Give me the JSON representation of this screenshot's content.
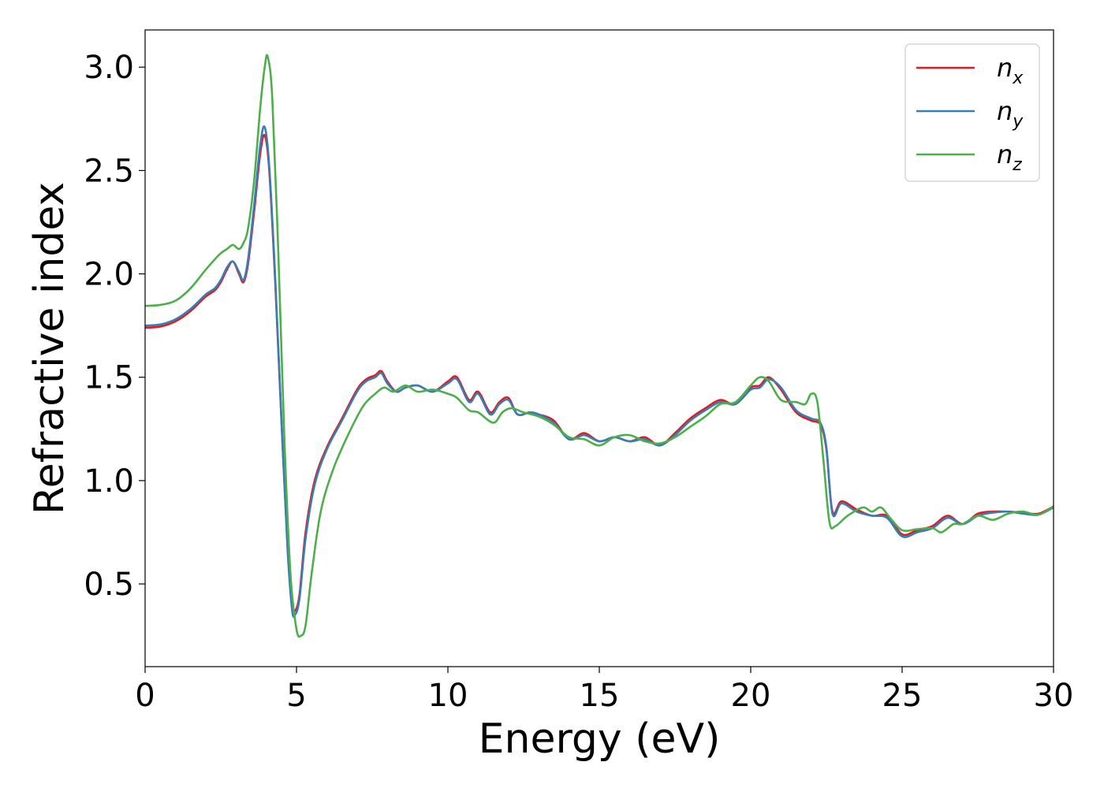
{
  "chart_data": {
    "type": "line",
    "title": "",
    "xlabel": "Energy (eV)",
    "ylabel": "Refractive index",
    "xlim": [
      0,
      30
    ],
    "ylim": [
      0.1,
      3.18
    ],
    "xticks": [
      0,
      5,
      10,
      15,
      20,
      25,
      30
    ],
    "yticks": [
      0.5,
      1.0,
      1.5,
      2.0,
      2.5,
      3.0
    ],
    "xtick_labels": [
      "0",
      "5",
      "10",
      "15",
      "20",
      "25",
      "30"
    ],
    "ytick_labels": [
      "0.5",
      "1.0",
      "1.5",
      "2.0",
      "2.5",
      "3.0"
    ],
    "grid": false,
    "legend_position": "top-right",
    "series": [
      {
        "name": "n_x",
        "legend_main": "n",
        "legend_sub": "x",
        "color": "#e41a1c",
        "x": [
          0,
          0.5,
          1.0,
          1.5,
          2.0,
          2.3,
          2.5,
          2.7,
          2.9,
          3.1,
          3.25,
          3.4,
          3.6,
          3.8,
          3.95,
          4.1,
          4.3,
          4.5,
          4.7,
          4.85,
          4.95,
          5.1,
          5.3,
          5.6,
          6.0,
          6.5,
          7.0,
          7.3,
          7.6,
          7.8,
          8.0,
          8.3,
          8.6,
          9.0,
          9.5,
          10.0,
          10.3,
          10.7,
          11.0,
          11.4,
          11.7,
          12.0,
          12.3,
          12.7,
          13.0,
          13.5,
          14.0,
          14.5,
          15.0,
          15.5,
          16.0,
          16.5,
          17.0,
          17.5,
          18.0,
          18.5,
          19.0,
          19.5,
          20.0,
          20.3,
          20.6,
          21.0,
          21.5,
          22.0,
          22.3,
          22.5,
          22.7,
          23.0,
          23.5,
          24.0,
          24.5,
          25.0,
          25.5,
          26.0,
          26.5,
          27.0,
          27.5,
          28.0,
          28.5,
          29.0,
          29.5,
          30.0
        ],
        "values": [
          1.74,
          1.745,
          1.77,
          1.82,
          1.89,
          1.92,
          1.96,
          2.02,
          2.06,
          2.0,
          1.96,
          2.05,
          2.3,
          2.58,
          2.67,
          2.5,
          1.95,
          1.3,
          0.7,
          0.42,
          0.37,
          0.45,
          0.75,
          1.0,
          1.16,
          1.3,
          1.44,
          1.49,
          1.51,
          1.53,
          1.48,
          1.43,
          1.45,
          1.46,
          1.43,
          1.48,
          1.5,
          1.39,
          1.43,
          1.33,
          1.38,
          1.4,
          1.32,
          1.33,
          1.32,
          1.29,
          1.2,
          1.23,
          1.19,
          1.21,
          1.19,
          1.21,
          1.17,
          1.23,
          1.3,
          1.35,
          1.39,
          1.37,
          1.45,
          1.46,
          1.5,
          1.44,
          1.33,
          1.29,
          1.27,
          1.15,
          0.85,
          0.9,
          0.86,
          0.83,
          0.83,
          0.74,
          0.76,
          0.78,
          0.83,
          0.79,
          0.84,
          0.85,
          0.85,
          0.845,
          0.84,
          0.875
        ]
      },
      {
        "name": "n_y",
        "legend_main": "n",
        "legend_sub": "y",
        "color": "#377eb8",
        "x": [
          0,
          0.5,
          1.0,
          1.5,
          2.0,
          2.3,
          2.5,
          2.7,
          2.9,
          3.1,
          3.25,
          3.4,
          3.6,
          3.8,
          3.95,
          4.1,
          4.3,
          4.5,
          4.7,
          4.85,
          4.95,
          5.1,
          5.3,
          5.6,
          6.0,
          6.5,
          7.0,
          7.3,
          7.6,
          7.8,
          8.0,
          8.3,
          8.6,
          9.0,
          9.5,
          10.0,
          10.3,
          10.7,
          11.0,
          11.4,
          11.7,
          12.0,
          12.3,
          12.7,
          13.0,
          13.5,
          14.0,
          14.5,
          15.0,
          15.5,
          16.0,
          16.5,
          17.0,
          17.5,
          18.0,
          18.5,
          19.0,
          19.5,
          20.0,
          20.3,
          20.6,
          21.0,
          21.5,
          22.0,
          22.3,
          22.5,
          22.7,
          23.0,
          23.5,
          24.0,
          24.5,
          25.0,
          25.5,
          26.0,
          26.5,
          27.0,
          27.5,
          28.0,
          28.5,
          29.0,
          29.5,
          30.0
        ],
        "values": [
          1.75,
          1.755,
          1.78,
          1.83,
          1.9,
          1.93,
          1.97,
          2.03,
          2.06,
          2.01,
          1.97,
          2.07,
          2.33,
          2.62,
          2.71,
          2.52,
          1.97,
          1.3,
          0.68,
          0.38,
          0.35,
          0.43,
          0.72,
          0.98,
          1.15,
          1.29,
          1.43,
          1.48,
          1.5,
          1.52,
          1.47,
          1.43,
          1.45,
          1.46,
          1.43,
          1.47,
          1.49,
          1.38,
          1.42,
          1.32,
          1.37,
          1.39,
          1.32,
          1.33,
          1.32,
          1.28,
          1.2,
          1.22,
          1.19,
          1.21,
          1.19,
          1.2,
          1.17,
          1.22,
          1.29,
          1.34,
          1.38,
          1.37,
          1.44,
          1.45,
          1.49,
          1.45,
          1.34,
          1.3,
          1.28,
          1.16,
          0.84,
          0.89,
          0.85,
          0.83,
          0.82,
          0.73,
          0.75,
          0.77,
          0.82,
          0.79,
          0.83,
          0.845,
          0.85,
          0.84,
          0.835,
          0.87
        ]
      },
      {
        "name": "n_z",
        "legend_main": "n",
        "legend_sub": "z",
        "color": "#4daf4a",
        "x": [
          0,
          0.5,
          1.0,
          1.5,
          2.0,
          2.3,
          2.5,
          2.7,
          2.9,
          3.1,
          3.25,
          3.4,
          3.6,
          3.8,
          3.95,
          4.05,
          4.2,
          4.4,
          4.6,
          4.8,
          5.0,
          5.15,
          5.3,
          5.5,
          5.8,
          6.2,
          6.7,
          7.2,
          7.6,
          7.9,
          8.2,
          8.6,
          9.0,
          9.5,
          10.0,
          10.3,
          10.7,
          11.0,
          11.5,
          11.8,
          12.1,
          12.5,
          13.0,
          13.5,
          14.0,
          14.5,
          15.0,
          15.5,
          16.0,
          16.5,
          17.0,
          17.5,
          18.0,
          18.5,
          19.0,
          19.5,
          20.0,
          20.3,
          20.6,
          21.0,
          21.5,
          21.8,
          22.0,
          22.2,
          22.4,
          22.6,
          22.8,
          23.2,
          23.7,
          24.0,
          24.3,
          24.6,
          25.0,
          25.5,
          26.0,
          26.3,
          26.7,
          27.0,
          27.5,
          28.0,
          28.5,
          29.0,
          29.5,
          30.0
        ],
        "values": [
          1.845,
          1.85,
          1.87,
          1.93,
          2.02,
          2.07,
          2.1,
          2.12,
          2.14,
          2.12,
          2.15,
          2.22,
          2.45,
          2.8,
          3.0,
          3.05,
          2.85,
          2.1,
          1.2,
          0.55,
          0.28,
          0.25,
          0.3,
          0.55,
          0.85,
          1.05,
          1.22,
          1.36,
          1.42,
          1.45,
          1.43,
          1.46,
          1.43,
          1.44,
          1.42,
          1.4,
          1.34,
          1.33,
          1.28,
          1.33,
          1.35,
          1.33,
          1.31,
          1.27,
          1.21,
          1.2,
          1.17,
          1.21,
          1.22,
          1.19,
          1.18,
          1.21,
          1.26,
          1.31,
          1.37,
          1.38,
          1.46,
          1.5,
          1.48,
          1.39,
          1.38,
          1.37,
          1.42,
          1.38,
          1.1,
          0.8,
          0.78,
          0.83,
          0.87,
          0.85,
          0.87,
          0.82,
          0.76,
          0.765,
          0.77,
          0.75,
          0.79,
          0.79,
          0.83,
          0.81,
          0.84,
          0.85,
          0.835,
          0.875
        ]
      }
    ]
  }
}
